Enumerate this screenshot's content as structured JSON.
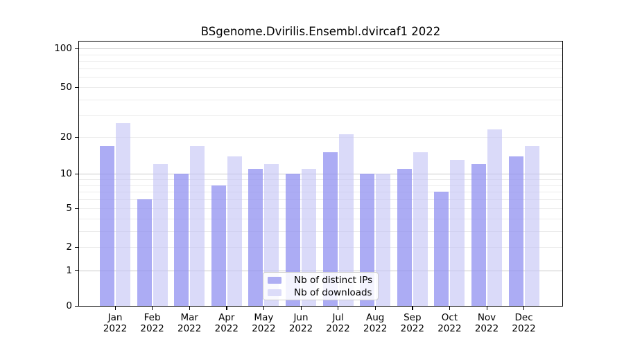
{
  "title": "BSgenome.Dvirilis.Ensembl.dvircaf1 2022",
  "chart_data": {
    "type": "bar",
    "title": "BSgenome.Dvirilis.Ensembl.dvircaf1 2022",
    "xlabel": "",
    "ylabel": "",
    "year": "2022",
    "categories": [
      "Jan",
      "Feb",
      "Mar",
      "Apr",
      "May",
      "Jun",
      "Jul",
      "Aug",
      "Sep",
      "Oct",
      "Nov",
      "Dec"
    ],
    "series": [
      {
        "name": "Nb of distinct IPs",
        "values": [
          17,
          6,
          10,
          8,
          11,
          10,
          15,
          10,
          11,
          7,
          12,
          14
        ],
        "color": "rgba(140,140,240,0.72)",
        "swatch": "#aeaef3"
      },
      {
        "name": "Nb of downloads",
        "values": [
          26,
          12,
          17,
          14,
          12,
          11,
          21,
          10,
          15,
          13,
          23,
          17
        ],
        "color": "rgba(196,196,246,0.62)",
        "swatch": "#dcdcf9"
      }
    ],
    "yticks": [
      0,
      1,
      2,
      5,
      10,
      20,
      50,
      100
    ],
    "ylim": [
      0,
      100
    ],
    "yscale": "log1p",
    "grid": true,
    "gridlines": {
      "major": [
        1,
        10,
        100
      ],
      "minor": [
        2,
        3,
        4,
        5,
        6,
        7,
        8,
        9,
        20,
        30,
        40,
        50,
        60,
        70,
        80,
        90
      ]
    },
    "legend_position": "bottom-center"
  },
  "colors": {
    "grid_major": "#c8c8c8",
    "grid_minor": "#ebebeb",
    "frame": "#000000",
    "background": "#ffffff"
  }
}
